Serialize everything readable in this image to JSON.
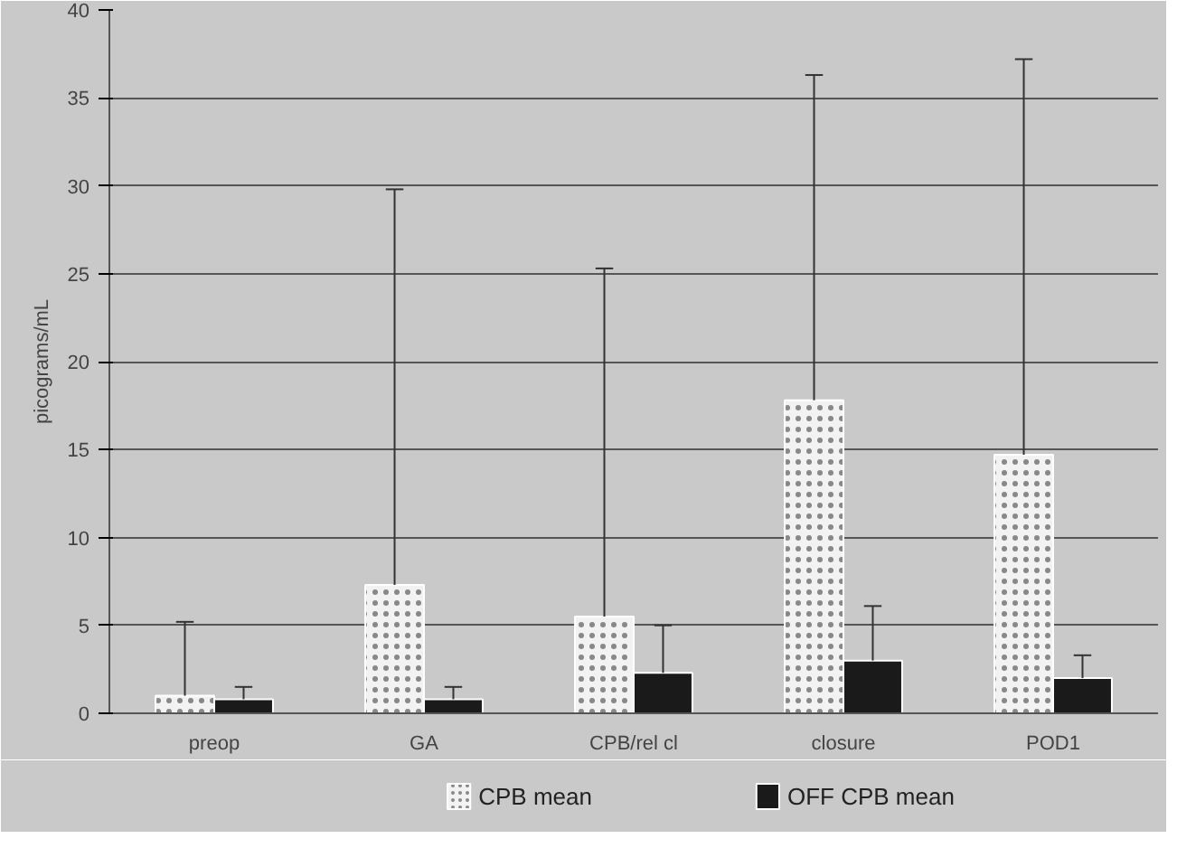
{
  "chart_data": {
    "type": "bar",
    "ylabel": "picograms/mL",
    "categories": [
      "preop",
      "GA",
      "CPB/rel cl",
      "closure",
      "POD1"
    ],
    "series": [
      {
        "name": "CPB mean",
        "color": "#f2f2f2",
        "values": [
          1.0,
          7.3,
          5.5,
          17.8,
          14.7
        ],
        "errors": [
          [
            1.0,
            5.2
          ],
          [
            7.3,
            29.8
          ],
          [
            5.5,
            25.3
          ],
          [
            17.8,
            36.3
          ],
          [
            14.7,
            37.2
          ]
        ]
      },
      {
        "name": "OFF CPB mean",
        "color": "#1a1a1a",
        "values": [
          0.8,
          0.8,
          2.3,
          3.0,
          2.0
        ],
        "errors": [
          [
            0.8,
            1.5
          ],
          [
            0.8,
            1.5
          ],
          [
            2.3,
            5.0
          ],
          [
            3.0,
            6.1
          ],
          [
            2.0,
            3.3
          ]
        ]
      }
    ],
    "ylim": [
      0,
      40
    ],
    "yticks": [
      0,
      5,
      10,
      15,
      20,
      25,
      30,
      35,
      40
    ],
    "grid": "y",
    "legend": "bottom"
  }
}
